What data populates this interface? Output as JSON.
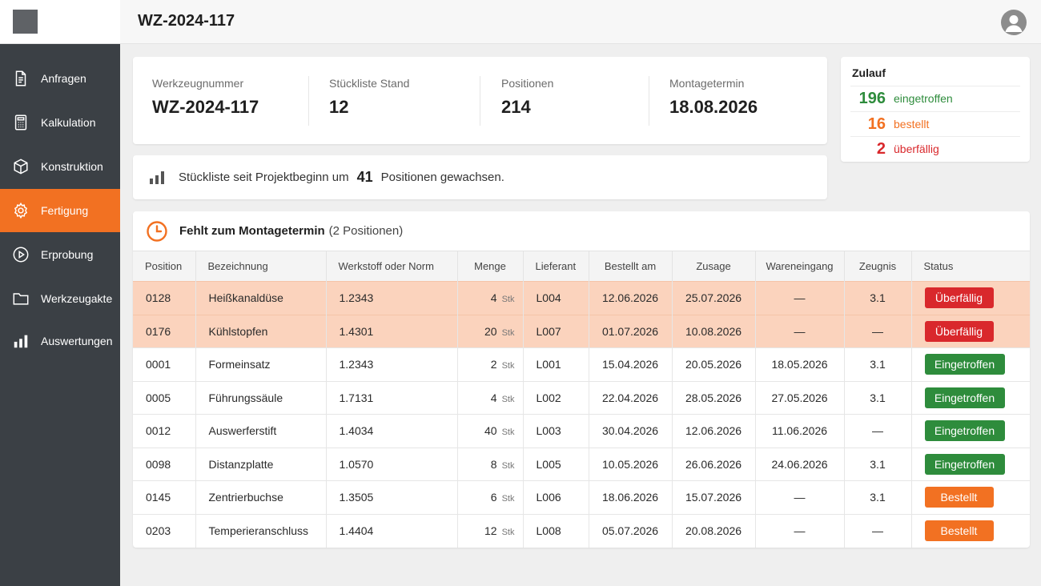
{
  "header": {
    "title": "WZ-2024-117"
  },
  "sidebar": {
    "items": [
      {
        "label": "Anfragen",
        "icon": "document-icon",
        "active": false
      },
      {
        "label": "Kalkulation",
        "icon": "calculator-icon",
        "active": false
      },
      {
        "label": "Konstruktion",
        "icon": "cube-icon",
        "active": false
      },
      {
        "label": "Fertigung",
        "icon": "gear-icon",
        "active": true
      },
      {
        "label": "Erprobung",
        "icon": "play-circle-icon",
        "active": false
      },
      {
        "label": "Werkzeugakte",
        "icon": "folder-icon",
        "active": false
      },
      {
        "label": "Auswertungen",
        "icon": "bar-chart-icon",
        "active": false
      }
    ]
  },
  "summary": {
    "werkzeugnummer": {
      "label": "Werkzeugnummer",
      "value": "WZ-2024-117"
    },
    "stand": {
      "label": "Stückliste Stand",
      "value": "12"
    },
    "positionen": {
      "label": "Positionen",
      "value": "214"
    },
    "montagetermin": {
      "label": "Montagetermin",
      "value": "18.08.2026"
    }
  },
  "zulauf": {
    "title": "Zulauf",
    "rows": [
      {
        "count": "196",
        "label": "eingetroffen",
        "color": "#2e8c3c"
      },
      {
        "count": "16",
        "label": "bestellt",
        "color": "#f27122"
      },
      {
        "count": "2",
        "label": "überfällig",
        "color": "#d9282c"
      }
    ]
  },
  "growth": {
    "prefix": "Stückliste seit Projektbeginn um",
    "count": "41",
    "suffix": "Positionen gewachsen."
  },
  "missing": {
    "title": "Fehlt zum Montagetermin",
    "subtitle": "(2 Positionen)",
    "columns": [
      "Position",
      "Bezeichnung",
      "Werkstoff oder Norm",
      "Menge",
      "Lieferant",
      "Bestellt am",
      "Zusage",
      "Wareneingang",
      "Zeugnis",
      "Status"
    ],
    "unit": "Stk",
    "rows": [
      {
        "position": "0128",
        "bezeichnung": "Heißkanaldüse",
        "werkstoff": "1.2343",
        "menge": "4",
        "lieferant": "L004",
        "bestellt": "12.06.2026",
        "zusage": "25.07.2026",
        "wareneingang": "—",
        "zeugnis": "3.1",
        "status": "Überfällig",
        "state": "overdue"
      },
      {
        "position": "0176",
        "bezeichnung": "Kühlstopfen",
        "werkstoff": "1.4301",
        "menge": "20",
        "lieferant": "L007",
        "bestellt": "01.07.2026",
        "zusage": "10.08.2026",
        "wareneingang": "—",
        "zeugnis": "—",
        "status": "Überfällig",
        "state": "overdue"
      },
      {
        "position": "0001",
        "bezeichnung": "Formeinsatz",
        "werkstoff": "1.2343",
        "menge": "2",
        "lieferant": "L001",
        "bestellt": "15.04.2026",
        "zusage": "20.05.2026",
        "wareneingang": "18.05.2026",
        "zeugnis": "3.1",
        "status": "Eingetroffen",
        "state": "arrived"
      },
      {
        "position": "0005",
        "bezeichnung": "Führungssäule",
        "werkstoff": "1.7131",
        "menge": "4",
        "lieferant": "L002",
        "bestellt": "22.04.2026",
        "zusage": "28.05.2026",
        "wareneingang": "27.05.2026",
        "zeugnis": "3.1",
        "status": "Eingetroffen",
        "state": "arrived"
      },
      {
        "position": "0012",
        "bezeichnung": "Auswerferstift",
        "werkstoff": "1.4034",
        "menge": "40",
        "lieferant": "L003",
        "bestellt": "30.04.2026",
        "zusage": "12.06.2026",
        "wareneingang": "11.06.2026",
        "zeugnis": "—",
        "status": "Eingetroffen",
        "state": "arrived"
      },
      {
        "position": "0098",
        "bezeichnung": "Distanzplatte",
        "werkstoff": "1.0570",
        "menge": "8",
        "lieferant": "L005",
        "bestellt": "10.05.2026",
        "zusage": "26.06.2026",
        "wareneingang": "24.06.2026",
        "zeugnis": "3.1",
        "status": "Eingetroffen",
        "state": "arrived"
      },
      {
        "position": "0145",
        "bezeichnung": "Zentrierbuchse",
        "werkstoff": "1.3505",
        "menge": "6",
        "lieferant": "L006",
        "bestellt": "18.06.2026",
        "zusage": "15.07.2026",
        "wareneingang": "—",
        "zeugnis": "3.1",
        "status": "Bestellt",
        "state": "ordered"
      },
      {
        "position": "0203",
        "bezeichnung": "Temperieranschluss",
        "werkstoff": "1.4404",
        "menge": "12",
        "lieferant": "L008",
        "bestellt": "05.07.2026",
        "zusage": "20.08.2026",
        "wareneingang": "—",
        "zeugnis": "—",
        "status": "Bestellt",
        "state": "ordered"
      }
    ]
  }
}
